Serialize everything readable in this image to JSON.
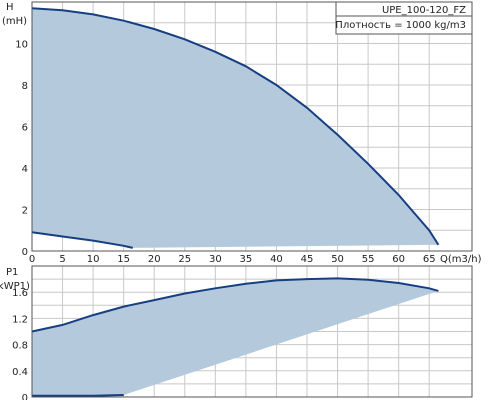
{
  "chart_data": [
    {
      "type": "area",
      "ylabel": "H",
      "yunit": "(mH)",
      "xlabel": "Q(m3/h)",
      "xlim": [
        0,
        72
      ],
      "ylim": [
        0,
        12
      ],
      "xticks": [
        0,
        5,
        10,
        15,
        20,
        25,
        30,
        35,
        40,
        45,
        50,
        55,
        60,
        65
      ],
      "yticks": [
        0,
        2,
        4,
        6,
        8,
        10
      ],
      "grid": true,
      "legend": [
        "UPE_100-120_FZ",
        "Плотность = 1000 kg/m3"
      ],
      "colors": {
        "fill": "#b5c9dc",
        "line": "#163f82"
      },
      "series": [
        {
          "values": [
            [
              0,
              11.7
            ],
            [
              5,
              11.6
            ],
            [
              10,
              11.4
            ],
            [
              15,
              11.1
            ],
            [
              20,
              10.7
            ],
            [
              25,
              10.2
            ],
            [
              30,
              9.6
            ],
            [
              35,
              8.9
            ],
            [
              40,
              8.0
            ],
            [
              45,
              6.9
            ],
            [
              50,
              5.6
            ],
            [
              55,
              4.2
            ],
            [
              60,
              2.7
            ],
            [
              65,
              1.0
            ],
            [
              66.5,
              0.3
            ]
          ]
        },
        {
          "values": [
            [
              0,
              0.9
            ],
            [
              5,
              0.7
            ],
            [
              10,
              0.5
            ],
            [
              15,
              0.25
            ],
            [
              16.5,
              0.15
            ]
          ]
        }
      ]
    },
    {
      "type": "area",
      "ylabel": "P1",
      "yunit": "(kWP1)",
      "xlim": [
        0,
        72
      ],
      "ylim": [
        0,
        2.0
      ],
      "yticks": [
        0,
        0.4,
        0.8,
        1.2,
        1.6
      ],
      "grid": true,
      "colors": {
        "fill": "#b5c9dc",
        "line": "#163f82"
      },
      "series": [
        {
          "values": [
            [
              0,
              1.0
            ],
            [
              5,
              1.1
            ],
            [
              10,
              1.25
            ],
            [
              15,
              1.38
            ],
            [
              20,
              1.48
            ],
            [
              25,
              1.58
            ],
            [
              30,
              1.66
            ],
            [
              35,
              1.73
            ],
            [
              40,
              1.78
            ],
            [
              45,
              1.8
            ],
            [
              50,
              1.81
            ],
            [
              55,
              1.79
            ],
            [
              60,
              1.74
            ],
            [
              65,
              1.66
            ],
            [
              66.5,
              1.62
            ]
          ]
        },
        {
          "values": [
            [
              0,
              0.02
            ],
            [
              10,
              0.02
            ],
            [
              15,
              0.03
            ]
          ]
        }
      ]
    }
  ]
}
